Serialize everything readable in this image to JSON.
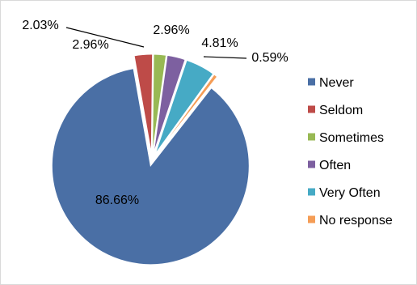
{
  "chart_data": {
    "type": "pie",
    "title": "",
    "legend_position": "right",
    "start_angle_deg": -10,
    "explode": "all slices slightly separated from center",
    "series": [
      {
        "name": "",
        "points": [
          {
            "label": "Never",
            "value": 86.66,
            "value_label": "86.66%",
            "color": "#4a6fa5"
          },
          {
            "label": "Seldom",
            "value": 2.96,
            "value_label": "2.96%",
            "color": "#be4b48"
          },
          {
            "label": "Sometimes",
            "value": 2.03,
            "value_label": "2.03%",
            "color": "#98b954"
          },
          {
            "label": "Often",
            "value": 2.96,
            "value_label": "2.96%",
            "color": "#7d60a0"
          },
          {
            "label": "Very Often",
            "value": 4.81,
            "value_label": "4.81%",
            "color": "#46aac5"
          },
          {
            "label": "No response",
            "value": 0.59,
            "value_label": "0.59%",
            "color": "#f59d56"
          }
        ]
      }
    ]
  }
}
